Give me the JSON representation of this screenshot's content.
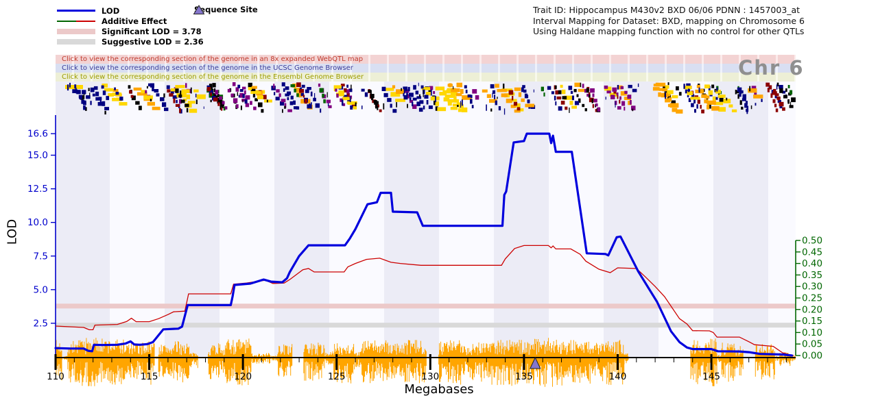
{
  "header": {
    "line1": "Trait ID: Hippocampus M430v2 BXD 06/06 PDNN : 1457003_at",
    "line2": "Interval Mapping for Dataset: BXD, mapping on Chromosome 6",
    "line3": "Using Haldane mapping function with no control for other QTLs"
  },
  "legend": {
    "items": [
      {
        "label": "LOD"
      },
      {
        "label": "Additive Effect"
      },
      {
        "label": "Significant LOD = 3.78"
      },
      {
        "label": "Suggestive LOD = 2.36"
      }
    ],
    "sequence_site_label": "Sequence Site"
  },
  "banners": [
    {
      "label": "Click to view the corresponding section of the genome in an 8x expanded WebQTL map",
      "cell": "#f3d3d3",
      "gap": "#fbebeb",
      "text_color": "#c0392b"
    },
    {
      "label": "Click to view the corresponding section of the genome in the UCSC Genome Browser",
      "cell": "#d9dff2",
      "gap": "#eef1fa",
      "text_color": "#3c3c99"
    },
    {
      "label": "Click to view the corresponding section of the genome in the Ensembl Genome Browser",
      "cell": "#edefd6",
      "gap": "#f8f9ec",
      "text_color": "#9d9d00"
    }
  ],
  "chr_label": "Chr 6",
  "colors": {
    "lod": "#0000dd",
    "additive": "#cc0000",
    "additive_left": "#006400",
    "significant_band": "#ecc9c9",
    "suggestive_band": "#d9d9d9",
    "sequence_site": "#8576cc",
    "left_axis": "#0000cc",
    "right_axis": "#006600",
    "noise": "#ffa500",
    "stripe_dark": "#ececf6",
    "stripe_light": "#fafaff"
  },
  "chart_data": {
    "type": "line",
    "title": "Interval Mapping for Dataset: BXD, mapping on Chromosome 6",
    "x_axis": {
      "label": "Megabases",
      "range": [
        110,
        149.5
      ],
      "tick_values": [
        110,
        115,
        120,
        125,
        130,
        135,
        140,
        145
      ],
      "ticks": [
        "110",
        "115",
        "120",
        "125",
        "130",
        "135",
        "140",
        "145"
      ],
      "minor_step": 1
    },
    "y_left": {
      "label": "LOD",
      "color": "#0000cc",
      "tick_values": [
        16.6,
        15.0,
        12.5,
        10.0,
        7.5,
        5.0,
        2.5
      ],
      "ticks": [
        "16.6",
        "15.0",
        "12.5",
        "10.0",
        "7.5",
        "5.0",
        "2.5"
      ]
    },
    "y_right": {
      "label": "Additive Effect",
      "color": "#006600",
      "range": [
        0,
        0.5
      ],
      "tick_values": [
        0.5,
        0.45,
        0.4,
        0.35,
        0.3,
        0.25,
        0.2,
        0.15,
        0.1,
        0.05,
        0.0
      ],
      "ticks": [
        "0.50",
        "0.45",
        "0.40",
        "0.35",
        "0.30",
        "0.25",
        "0.20",
        "0.15",
        "0.10",
        "0.05",
        "0.00"
      ]
    },
    "thresholds": {
      "significant": 3.78,
      "significant_color": "#ecc9c9",
      "suggestive": 2.36,
      "suggestive_color": "#d9d9d9"
    },
    "plot_bg": {
      "dark": "#ececf6",
      "light": "#fafaff"
    },
    "series": [
      {
        "name": "LOD",
        "axis": "left",
        "color": "#0000dd",
        "points": [
          [
            110,
            0.65
          ],
          [
            110.8,
            0.62
          ],
          [
            111.5,
            0.62
          ],
          [
            111.75,
            0.45
          ],
          [
            111.95,
            0.42
          ],
          [
            112.05,
            0.9
          ],
          [
            112.5,
            0.88
          ],
          [
            113.3,
            0.9
          ],
          [
            113.75,
            1.0
          ],
          [
            114.0,
            1.15
          ],
          [
            114.2,
            0.92
          ],
          [
            114.5,
            0.9
          ],
          [
            114.9,
            0.95
          ],
          [
            115.2,
            1.1
          ],
          [
            115.75,
            2.05
          ],
          [
            116.55,
            2.1
          ],
          [
            116.75,
            2.25
          ],
          [
            117.05,
            3.85
          ],
          [
            119.35,
            3.85
          ],
          [
            119.45,
            4.5
          ],
          [
            119.55,
            5.35
          ],
          [
            120.4,
            5.45
          ],
          [
            121.1,
            5.75
          ],
          [
            121.5,
            5.6
          ],
          [
            122.1,
            5.55
          ],
          [
            122.35,
            5.85
          ],
          [
            122.5,
            6.3
          ],
          [
            123.0,
            7.5
          ],
          [
            123.5,
            8.3
          ],
          [
            125.45,
            8.3
          ],
          [
            125.7,
            8.8
          ],
          [
            126.0,
            9.5
          ],
          [
            126.65,
            11.35
          ],
          [
            127.15,
            11.5
          ],
          [
            127.35,
            12.2
          ],
          [
            127.9,
            12.2
          ],
          [
            128.0,
            10.8
          ],
          [
            129.3,
            10.75
          ],
          [
            129.6,
            9.75
          ],
          [
            133.85,
            9.75
          ],
          [
            133.95,
            12.05
          ],
          [
            134.05,
            12.3
          ],
          [
            134.45,
            15.95
          ],
          [
            135.0,
            16.05
          ],
          [
            135.15,
            16.6
          ],
          [
            136.35,
            16.6
          ],
          [
            136.45,
            15.9
          ],
          [
            136.55,
            16.45
          ],
          [
            136.7,
            15.25
          ],
          [
            137.55,
            15.25
          ],
          [
            138.35,
            7.7
          ],
          [
            139.35,
            7.65
          ],
          [
            139.5,
            7.55
          ],
          [
            139.95,
            8.9
          ],
          [
            140.15,
            8.95
          ],
          [
            141.1,
            6.35
          ],
          [
            142.1,
            4.1
          ],
          [
            142.85,
            1.9
          ],
          [
            143.3,
            1.1
          ],
          [
            143.7,
            0.7
          ],
          [
            144.0,
            0.58
          ],
          [
            145.0,
            0.58
          ],
          [
            145.35,
            0.42
          ],
          [
            146.5,
            0.4
          ],
          [
            147.0,
            0.35
          ],
          [
            147.6,
            0.22
          ],
          [
            148.8,
            0.18
          ],
          [
            149.3,
            0.1
          ]
        ]
      },
      {
        "name": "Additive Effect",
        "axis": "right",
        "color": "#cc0000",
        "points": [
          [
            110,
            0.128
          ],
          [
            111.5,
            0.122
          ],
          [
            111.8,
            0.112
          ],
          [
            112.0,
            0.112
          ],
          [
            112.1,
            0.132
          ],
          [
            113.3,
            0.135
          ],
          [
            113.8,
            0.148
          ],
          [
            114.05,
            0.162
          ],
          [
            114.3,
            0.147
          ],
          [
            115.0,
            0.147
          ],
          [
            115.5,
            0.16
          ],
          [
            116.0,
            0.178
          ],
          [
            116.3,
            0.19
          ],
          [
            116.9,
            0.193
          ],
          [
            117.1,
            0.268
          ],
          [
            119.35,
            0.268
          ],
          [
            119.5,
            0.31
          ],
          [
            120.2,
            0.315
          ],
          [
            121.2,
            0.327
          ],
          [
            121.6,
            0.313
          ],
          [
            122.2,
            0.315
          ],
          [
            122.5,
            0.33
          ],
          [
            123.2,
            0.373
          ],
          [
            123.5,
            0.378
          ],
          [
            123.8,
            0.363
          ],
          [
            125.4,
            0.363
          ],
          [
            125.6,
            0.385
          ],
          [
            126.0,
            0.4
          ],
          [
            126.6,
            0.418
          ],
          [
            127.3,
            0.423
          ],
          [
            127.9,
            0.405
          ],
          [
            128.4,
            0.4
          ],
          [
            129.5,
            0.392
          ],
          [
            133.8,
            0.392
          ],
          [
            134.0,
            0.42
          ],
          [
            134.5,
            0.465
          ],
          [
            135.0,
            0.478
          ],
          [
            136.3,
            0.478
          ],
          [
            136.45,
            0.468
          ],
          [
            136.55,
            0.476
          ],
          [
            136.7,
            0.463
          ],
          [
            137.5,
            0.463
          ],
          [
            138.0,
            0.44
          ],
          [
            138.3,
            0.41
          ],
          [
            139.0,
            0.375
          ],
          [
            139.6,
            0.36
          ],
          [
            140.0,
            0.381
          ],
          [
            141.0,
            0.378
          ],
          [
            141.5,
            0.34
          ],
          [
            142.0,
            0.3
          ],
          [
            142.5,
            0.256
          ],
          [
            143.3,
            0.16
          ],
          [
            143.7,
            0.137
          ],
          [
            144.0,
            0.108
          ],
          [
            144.9,
            0.107
          ],
          [
            145.1,
            0.1
          ],
          [
            145.3,
            0.08
          ],
          [
            146.5,
            0.08
          ],
          [
            147.0,
            0.06
          ],
          [
            147.3,
            0.047
          ],
          [
            148.3,
            0.04
          ],
          [
            148.8,
            0.012
          ],
          [
            149.2,
            0.003
          ],
          [
            149.4,
            0.0
          ]
        ]
      }
    ],
    "sequence_site": {
      "mb": 135.6,
      "fill": "#8576cc"
    },
    "noise": {
      "color": "#ffa500",
      "seed": 7,
      "segments": [
        [
          110.0,
          110.35,
          26,
          34
        ],
        [
          110.35,
          110.65,
          3,
          3
        ],
        [
          110.65,
          111.35,
          26,
          38
        ],
        [
          111.35,
          112.45,
          30,
          42
        ],
        [
          112.45,
          113.65,
          28,
          40
        ],
        [
          113.65,
          114.65,
          22,
          32
        ],
        [
          114.65,
          115.3,
          26,
          40
        ],
        [
          115.3,
          115.5,
          2,
          2
        ],
        [
          115.5,
          116.35,
          20,
          32
        ],
        [
          116.35,
          117.15,
          24,
          38
        ],
        [
          117.15,
          117.6,
          7,
          16
        ],
        [
          117.6,
          118.15,
          0,
          0
        ],
        [
          118.15,
          119.15,
          22,
          32
        ],
        [
          119.15,
          120.45,
          28,
          42
        ],
        [
          120.45,
          121.45,
          7,
          9
        ],
        [
          121.45,
          121.85,
          3,
          5
        ],
        [
          121.85,
          122.65,
          20,
          28
        ],
        [
          122.65,
          123.25,
          0,
          0
        ],
        [
          123.25,
          124.35,
          22,
          35
        ],
        [
          124.35,
          124.85,
          9,
          11
        ],
        [
          124.85,
          125.95,
          22,
          38
        ],
        [
          125.95,
          126.35,
          10,
          14
        ],
        [
          126.35,
          127.65,
          26,
          38
        ],
        [
          127.65,
          128.65,
          22,
          35
        ],
        [
          128.65,
          129.8,
          26,
          38
        ],
        [
          129.8,
          130.45,
          0,
          0
        ],
        [
          130.45,
          131.65,
          26,
          40
        ],
        [
          131.65,
          132.55,
          22,
          35
        ],
        [
          132.55,
          133.25,
          26,
          38
        ],
        [
          133.25,
          134.35,
          28,
          42
        ],
        [
          134.35,
          135.35,
          26,
          40
        ],
        [
          135.35,
          136.55,
          30,
          43
        ],
        [
          136.55,
          137.65,
          28,
          41
        ],
        [
          137.65,
          138.65,
          26,
          38
        ],
        [
          138.65,
          139.35,
          22,
          35
        ],
        [
          139.35,
          140.35,
          26,
          40
        ],
        [
          140.35,
          140.6,
          8,
          13
        ],
        [
          140.6,
          143.9,
          0,
          0
        ],
        [
          143.9,
          145.3,
          28,
          42
        ],
        [
          145.3,
          145.55,
          4,
          7
        ],
        [
          145.55,
          146.25,
          22,
          38
        ],
        [
          146.25,
          146.7,
          18,
          28
        ],
        [
          146.7,
          147.35,
          0,
          0
        ],
        [
          147.35,
          148.4,
          20,
          32
        ],
        [
          148.4,
          148.65,
          3,
          5
        ],
        [
          148.65,
          149.25,
          9,
          13
        ],
        [
          149.25,
          149.5,
          4,
          7
        ]
      ]
    },
    "gene_track": {
      "seed": 11,
      "cascade_count": 150,
      "tick_count": 80,
      "colors": [
        "#000080",
        "#000000",
        "#ffd700",
        "#ffa500",
        "#8b0000",
        "#800080",
        "#006400"
      ]
    }
  }
}
